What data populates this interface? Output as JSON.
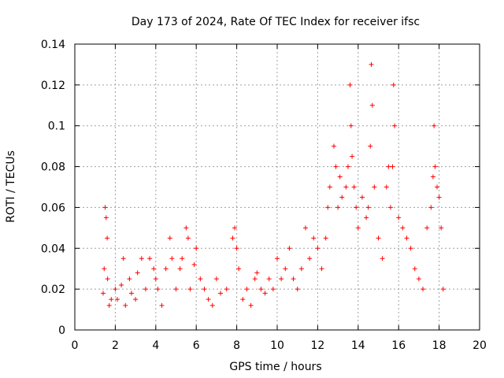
{
  "chart_data": {
    "type": "scatter",
    "title": "Day 173 of 2024, Rate Of TEC Index for receiver ifsc",
    "xlabel": "GPS time / hours",
    "ylabel": "ROTI / TECUs",
    "xlim": [
      0,
      20
    ],
    "ylim": [
      0,
      0.14
    ],
    "x_ticks": [
      "0",
      "2",
      "4",
      "6",
      "8",
      "10",
      "12",
      "14",
      "16",
      "18",
      "20"
    ],
    "y_ticks": [
      "0",
      "0.02",
      "0.04",
      "0.06",
      "0.08",
      "0.1",
      "0.12",
      "0.14"
    ],
    "grid": true,
    "marker": "+",
    "color": "#ff0000",
    "series": [
      {
        "name": "ROTI",
        "points": [
          [
            1.4,
            0.018
          ],
          [
            1.45,
            0.03
          ],
          [
            1.5,
            0.06
          ],
          [
            1.55,
            0.055
          ],
          [
            1.6,
            0.045
          ],
          [
            1.62,
            0.025
          ],
          [
            1.7,
            0.012
          ],
          [
            1.8,
            0.015
          ],
          [
            2.0,
            0.02
          ],
          [
            2.1,
            0.015
          ],
          [
            2.3,
            0.022
          ],
          [
            2.4,
            0.035
          ],
          [
            2.5,
            0.012
          ],
          [
            2.7,
            0.025
          ],
          [
            2.8,
            0.018
          ],
          [
            3.0,
            0.015
          ],
          [
            3.1,
            0.028
          ],
          [
            3.3,
            0.035
          ],
          [
            3.5,
            0.02
          ],
          [
            3.7,
            0.035
          ],
          [
            3.9,
            0.03
          ],
          [
            4.0,
            0.025
          ],
          [
            4.1,
            0.02
          ],
          [
            4.3,
            0.012
          ],
          [
            4.5,
            0.03
          ],
          [
            4.7,
            0.045
          ],
          [
            4.8,
            0.035
          ],
          [
            5.0,
            0.02
          ],
          [
            5.2,
            0.03
          ],
          [
            5.3,
            0.035
          ],
          [
            5.5,
            0.05
          ],
          [
            5.6,
            0.045
          ],
          [
            5.7,
            0.02
          ],
          [
            5.9,
            0.032
          ],
          [
            6.0,
            0.04
          ],
          [
            6.2,
            0.025
          ],
          [
            6.4,
            0.02
          ],
          [
            6.6,
            0.015
          ],
          [
            6.8,
            0.012
          ],
          [
            7.0,
            0.025
          ],
          [
            7.2,
            0.018
          ],
          [
            7.5,
            0.02
          ],
          [
            7.8,
            0.045
          ],
          [
            7.9,
            0.05
          ],
          [
            8.0,
            0.04
          ],
          [
            8.1,
            0.03
          ],
          [
            8.3,
            0.015
          ],
          [
            8.5,
            0.02
          ],
          [
            8.7,
            0.012
          ],
          [
            8.9,
            0.025
          ],
          [
            9.0,
            0.028
          ],
          [
            9.2,
            0.02
          ],
          [
            9.4,
            0.018
          ],
          [
            9.6,
            0.025
          ],
          [
            9.8,
            0.02
          ],
          [
            10.0,
            0.035
          ],
          [
            10.2,
            0.025
          ],
          [
            10.4,
            0.03
          ],
          [
            10.6,
            0.04
          ],
          [
            10.8,
            0.025
          ],
          [
            11.0,
            0.02
          ],
          [
            11.2,
            0.03
          ],
          [
            11.4,
            0.05
          ],
          [
            11.6,
            0.035
          ],
          [
            11.8,
            0.045
          ],
          [
            12.0,
            0.04
          ],
          [
            12.2,
            0.03
          ],
          [
            12.4,
            0.045
          ],
          [
            12.5,
            0.06
          ],
          [
            12.6,
            0.07
          ],
          [
            12.8,
            0.09
          ],
          [
            12.9,
            0.08
          ],
          [
            13.0,
            0.06
          ],
          [
            13.1,
            0.075
          ],
          [
            13.2,
            0.065
          ],
          [
            13.4,
            0.07
          ],
          [
            13.5,
            0.08
          ],
          [
            13.6,
            0.12
          ],
          [
            13.65,
            0.1
          ],
          [
            13.7,
            0.085
          ],
          [
            13.8,
            0.07
          ],
          [
            13.9,
            0.06
          ],
          [
            14.0,
            0.05
          ],
          [
            14.2,
            0.065
          ],
          [
            14.4,
            0.055
          ],
          [
            14.5,
            0.06
          ],
          [
            14.6,
            0.09
          ],
          [
            14.65,
            0.13
          ],
          [
            14.7,
            0.11
          ],
          [
            14.8,
            0.07
          ],
          [
            15.0,
            0.045
          ],
          [
            15.2,
            0.035
          ],
          [
            15.4,
            0.07
          ],
          [
            15.5,
            0.08
          ],
          [
            15.6,
            0.06
          ],
          [
            15.7,
            0.08
          ],
          [
            15.75,
            0.12
          ],
          [
            15.8,
            0.1
          ],
          [
            16.0,
            0.055
          ],
          [
            16.2,
            0.05
          ],
          [
            16.4,
            0.045
          ],
          [
            16.6,
            0.04
          ],
          [
            16.8,
            0.03
          ],
          [
            17.0,
            0.025
          ],
          [
            17.2,
            0.02
          ],
          [
            17.4,
            0.05
          ],
          [
            17.6,
            0.06
          ],
          [
            17.7,
            0.075
          ],
          [
            17.75,
            0.1
          ],
          [
            17.8,
            0.08
          ],
          [
            17.9,
            0.07
          ],
          [
            18.0,
            0.065
          ],
          [
            18.1,
            0.05
          ],
          [
            18.2,
            0.02
          ]
        ]
      }
    ]
  }
}
